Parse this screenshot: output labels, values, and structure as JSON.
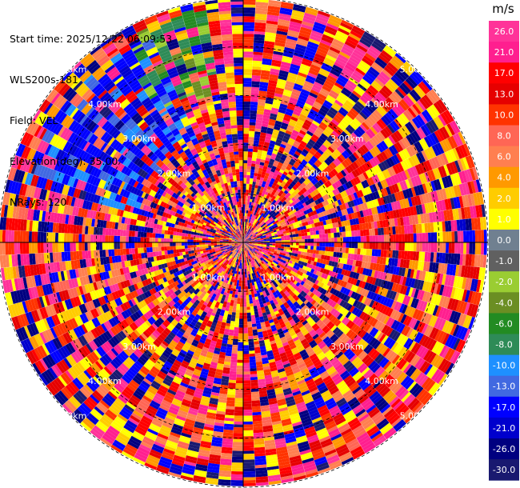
{
  "header": {
    "start_time": "Start time: 2025/12/22 06:09:53",
    "site": "WLS200s-181",
    "field": "Field: VEL",
    "elevation": "Elevation(deg): 35.00",
    "nrays": "NRays: 120"
  },
  "chart_data": {
    "type": "heatmap",
    "projection": "polar-ppi",
    "field": "VEL",
    "nrays": 120,
    "range_unit": "km",
    "range_max": 5.0,
    "range_rings": [
      1.0,
      2.0,
      3.0,
      4.0,
      5.0
    ],
    "ring_labels": [
      "1.00km",
      "2.00km",
      "3.00km",
      "4.00km",
      "5.00km"
    ],
    "grid": true,
    "colorbar": {
      "unit": "m/s",
      "ticks": [
        "26.0",
        "21.0",
        "17.0",
        "13.0",
        "10.0",
        "8.0",
        "6.0",
        "4.0",
        "2.0",
        "1.0",
        "0.0",
        "-1.0",
        "-2.0",
        "-4.0",
        "-6.0",
        "-8.0",
        "-10.0",
        "-13.0",
        "-17.0",
        "-21.0",
        "-26.0",
        "-30.0"
      ],
      "colors": [
        "#ff3399",
        "#ff1f8f",
        "#ff0000",
        "#e60000",
        "#ff3300",
        "#ff6655",
        "#ff7f50",
        "#ff9900",
        "#ffcc00",
        "#ffff00",
        "#708090",
        "#606060",
        "#9acd32",
        "#6b8e23",
        "#228b22",
        "#2e8b57",
        "#1e90ff",
        "#4169e1",
        "#0000ff",
        "#0000cd",
        "#000080",
        "#191970"
      ]
    },
    "pattern_note_colors": {
      "noise_bias": "mixed"
    }
  }
}
